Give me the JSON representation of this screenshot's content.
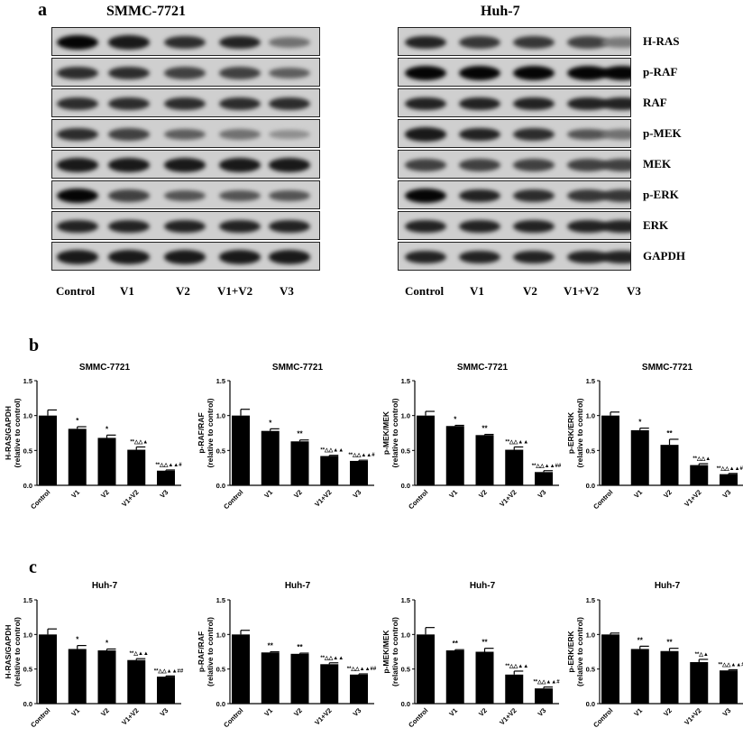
{
  "panel_labels": {
    "a": "a",
    "b": "b",
    "c": "c"
  },
  "blots": [
    {
      "cell_line": "SMMC-7721",
      "lanes": [
        "Control",
        "V1",
        "V2",
        "V1+V2",
        "V3"
      ],
      "rows": [
        {
          "protein": "H-RAS",
          "band_intensity": [
            1.0,
            0.9,
            0.8,
            0.85,
            0.45
          ]
        },
        {
          "protein": "p-RAF",
          "band_intensity": [
            0.8,
            0.8,
            0.7,
            0.7,
            0.55
          ]
        },
        {
          "protein": "RAF",
          "band_intensity": [
            0.8,
            0.8,
            0.8,
            0.8,
            0.8
          ]
        },
        {
          "protein": "p-MEK",
          "band_intensity": [
            0.8,
            0.7,
            0.55,
            0.45,
            0.3
          ]
        },
        {
          "protein": "MEK",
          "band_intensity": [
            0.9,
            0.9,
            0.9,
            0.9,
            0.9
          ]
        },
        {
          "protein": "p-ERK",
          "band_intensity": [
            1.0,
            0.7,
            0.6,
            0.6,
            0.6
          ]
        },
        {
          "protein": "ERK",
          "band_intensity": [
            0.85,
            0.85,
            0.85,
            0.85,
            0.85
          ]
        },
        {
          "protein": "GAPDH",
          "band_intensity": [
            0.9,
            0.9,
            0.9,
            0.9,
            0.9
          ]
        }
      ]
    },
    {
      "cell_line": "Huh-7",
      "lanes": [
        "Control",
        "V1",
        "V2",
        "V1+V2",
        "V3"
      ],
      "rows": [
        {
          "protein": "H-RAS",
          "band_intensity": [
            0.85,
            0.75,
            0.75,
            0.7,
            0.4
          ]
        },
        {
          "protein": "p-RAF",
          "band_intensity": [
            1.0,
            1.0,
            1.0,
            1.0,
            1.0
          ]
        },
        {
          "protein": "RAF",
          "band_intensity": [
            0.85,
            0.85,
            0.85,
            0.85,
            0.85
          ]
        },
        {
          "protein": "p-MEK",
          "band_intensity": [
            0.9,
            0.85,
            0.8,
            0.6,
            0.45
          ]
        },
        {
          "protein": "MEK",
          "band_intensity": [
            0.7,
            0.7,
            0.7,
            0.7,
            0.7
          ]
        },
        {
          "protein": "p-ERK",
          "band_intensity": [
            1.0,
            0.85,
            0.8,
            0.75,
            0.75
          ]
        },
        {
          "protein": "ERK",
          "band_intensity": [
            0.85,
            0.85,
            0.85,
            0.85,
            0.85
          ]
        },
        {
          "protein": "GAPDH",
          "band_intensity": [
            0.85,
            0.85,
            0.85,
            0.85,
            0.85
          ]
        }
      ]
    }
  ],
  "chart_data": [
    {
      "type": "bar",
      "panel": "b",
      "title": "SMMC-7721",
      "ylabel": "H-RAS/GAPDH",
      "ylabel2": "(relative to control)",
      "categories": [
        "Control",
        "V1",
        "V2",
        "V1+V2",
        "V3"
      ],
      "values": [
        1.0,
        0.81,
        0.68,
        0.51,
        0.21
      ],
      "errors": [
        0.08,
        0.03,
        0.04,
        0.04,
        0.01
      ],
      "annotations": [
        "",
        "*",
        "*",
        "**△△▲",
        "**△△▲▲#"
      ],
      "ylim": [
        0,
        1.5
      ],
      "yticks": [
        "0.0",
        "0.5",
        "1.0",
        "1.5"
      ],
      "color": "#000000"
    },
    {
      "type": "bar",
      "panel": "b",
      "title": "SMMC-7721",
      "ylabel": "p-RAF/RAF",
      "ylabel2": "(relative to control)",
      "categories": [
        "Control",
        "V1",
        "V2",
        "V1+V2",
        "V3"
      ],
      "values": [
        1.0,
        0.78,
        0.63,
        0.42,
        0.35
      ],
      "errors": [
        0.09,
        0.03,
        0.02,
        0.01,
        0.01
      ],
      "annotations": [
        "",
        "*",
        "**",
        "**△△▲▲",
        "**△△▲▲#"
      ],
      "ylim": [
        0,
        1.5
      ],
      "yticks": [
        "0.0",
        "0.5",
        "1.0",
        "1.5"
      ],
      "color": "#000000"
    },
    {
      "type": "bar",
      "panel": "b",
      "title": "SMMC-7721",
      "ylabel": "p-MEK/MEK",
      "ylabel2": "(relative to control)",
      "categories": [
        "Control",
        "V1",
        "V2",
        "V1+V2",
        "V3"
      ],
      "values": [
        1.0,
        0.85,
        0.72,
        0.51,
        0.19
      ],
      "errors": [
        0.06,
        0.01,
        0.01,
        0.04,
        0.02
      ],
      "annotations": [
        "",
        "*",
        "**",
        "**△△▲▲",
        "**△△▲▲##"
      ],
      "ylim": [
        0,
        1.5
      ],
      "yticks": [
        "0.0",
        "0.5",
        "1.0",
        "1.5"
      ],
      "color": "#000000"
    },
    {
      "type": "bar",
      "panel": "b",
      "title": "SMMC-7721",
      "ylabel": "p-ERK/ERK",
      "ylabel2": "(relative to control)",
      "categories": [
        "Control",
        "V1",
        "V2",
        "V1+V2",
        "V3"
      ],
      "values": [
        1.0,
        0.79,
        0.58,
        0.29,
        0.16
      ],
      "errors": [
        0.05,
        0.03,
        0.08,
        0.02,
        0.01
      ],
      "annotations": [
        "",
        "*",
        "**",
        "**△△▲",
        "**△△▲▲##"
      ],
      "ylim": [
        0,
        1.5
      ],
      "yticks": [
        "0.0",
        "0.5",
        "1.0",
        "1.5"
      ],
      "color": "#000000"
    },
    {
      "type": "bar",
      "panel": "c",
      "title": "Huh-7",
      "ylabel": "H-RAS/GAPDH",
      "ylabel2": "(relative to control)",
      "categories": [
        "Control",
        "V1",
        "V2",
        "V1+V2",
        "V3"
      ],
      "values": [
        1.0,
        0.79,
        0.77,
        0.63,
        0.39
      ],
      "errors": [
        0.08,
        0.05,
        0.02,
        0.02,
        0.01
      ],
      "annotations": [
        "",
        "*",
        "*",
        "**△▲▲",
        "**△△▲▲##"
      ],
      "ylim": [
        0,
        1.5
      ],
      "yticks": [
        "0.0",
        "0.5",
        "1.0",
        "1.5"
      ],
      "color": "#000000"
    },
    {
      "type": "bar",
      "panel": "c",
      "title": "Huh-7",
      "ylabel": "p-RAF/RAF",
      "ylabel2": "(relative to control)",
      "categories": [
        "Control",
        "V1",
        "V2",
        "V1+V2",
        "V3"
      ],
      "values": [
        1.0,
        0.74,
        0.72,
        0.57,
        0.42
      ],
      "errors": [
        0.06,
        0.01,
        0.01,
        0.02,
        0.01
      ],
      "annotations": [
        "",
        "**",
        "**",
        "**△△▲▲",
        "**△△▲▲##"
      ],
      "ylim": [
        0,
        1.5
      ],
      "yticks": [
        "0.0",
        "0.5",
        "1.0",
        "1.5"
      ],
      "color": "#000000"
    },
    {
      "type": "bar",
      "panel": "c",
      "title": "Huh-7",
      "ylabel": "p-MEK/MEK",
      "ylabel2": "(relative to control)",
      "categories": [
        "Control",
        "V1",
        "V2",
        "V1+V2",
        "V3"
      ],
      "values": [
        1.0,
        0.77,
        0.75,
        0.42,
        0.22
      ],
      "errors": [
        0.1,
        0.01,
        0.05,
        0.05,
        0.02
      ],
      "annotations": [
        "",
        "**",
        "**",
        "**△△▲▲",
        "**△△▲▲#"
      ],
      "ylim": [
        0,
        1.5
      ],
      "yticks": [
        "0.0",
        "0.5",
        "1.0",
        "1.5"
      ],
      "color": "#000000"
    },
    {
      "type": "bar",
      "panel": "c",
      "title": "Huh-7",
      "ylabel": "p-ERK/ERK",
      "ylabel2": "(relative to control)",
      "categories": [
        "Control",
        "V1",
        "V2",
        "V1+V2",
        "V3"
      ],
      "values": [
        1.0,
        0.79,
        0.76,
        0.6,
        0.48
      ],
      "errors": [
        0.02,
        0.04,
        0.04,
        0.04,
        0.01
      ],
      "annotations": [
        "",
        "**",
        "**",
        "**△▲",
        "**△△▲▲#"
      ],
      "ylim": [
        0,
        1.5
      ],
      "yticks": [
        "0.0",
        "0.5",
        "1.0",
        "1.5"
      ],
      "color": "#000000"
    }
  ]
}
